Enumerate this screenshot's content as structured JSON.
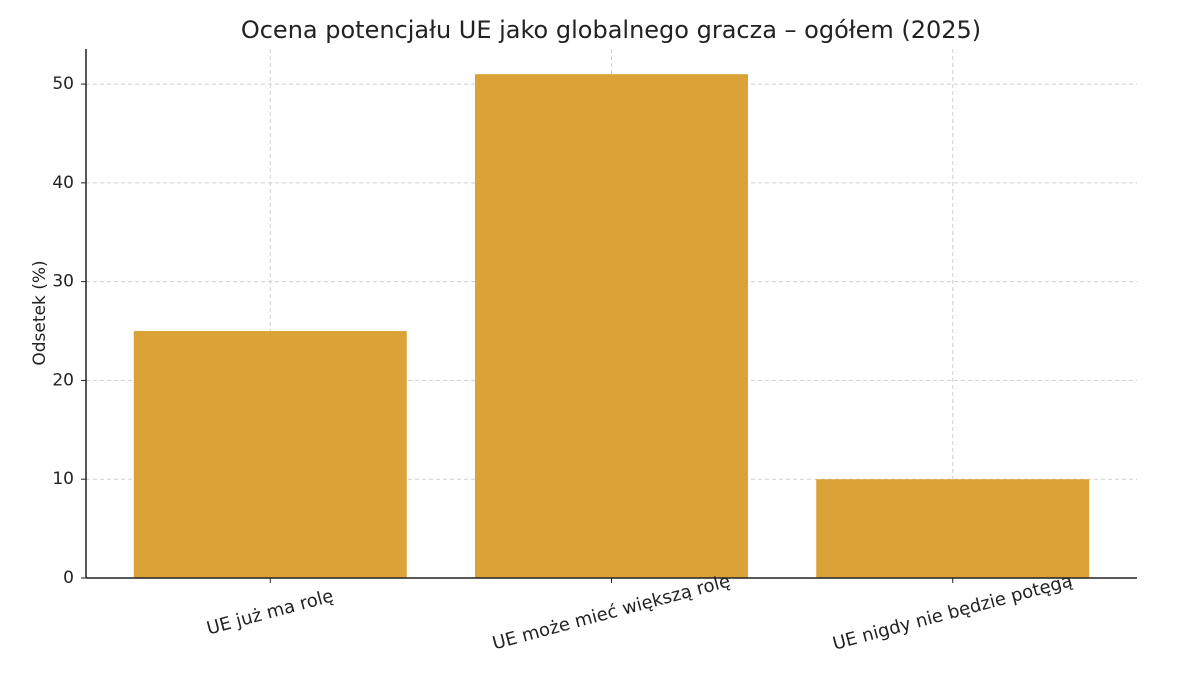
{
  "chart_data": {
    "type": "bar",
    "title": "Ocena potencjału UE jako globalnego gracza – ogółem (2025)",
    "y_label": "Odsetek (%)",
    "categories": [
      "UE już ma rolę",
      "UE może mieć większą rolę",
      "UE nigdy nie będzie potęgą"
    ],
    "values": [
      25,
      51,
      10
    ],
    "color": "#dba238",
    "ylim": [
      0,
      53.55
    ],
    "yticks": [
      0,
      10,
      20,
      30,
      40,
      50
    ],
    "grid": true
  }
}
